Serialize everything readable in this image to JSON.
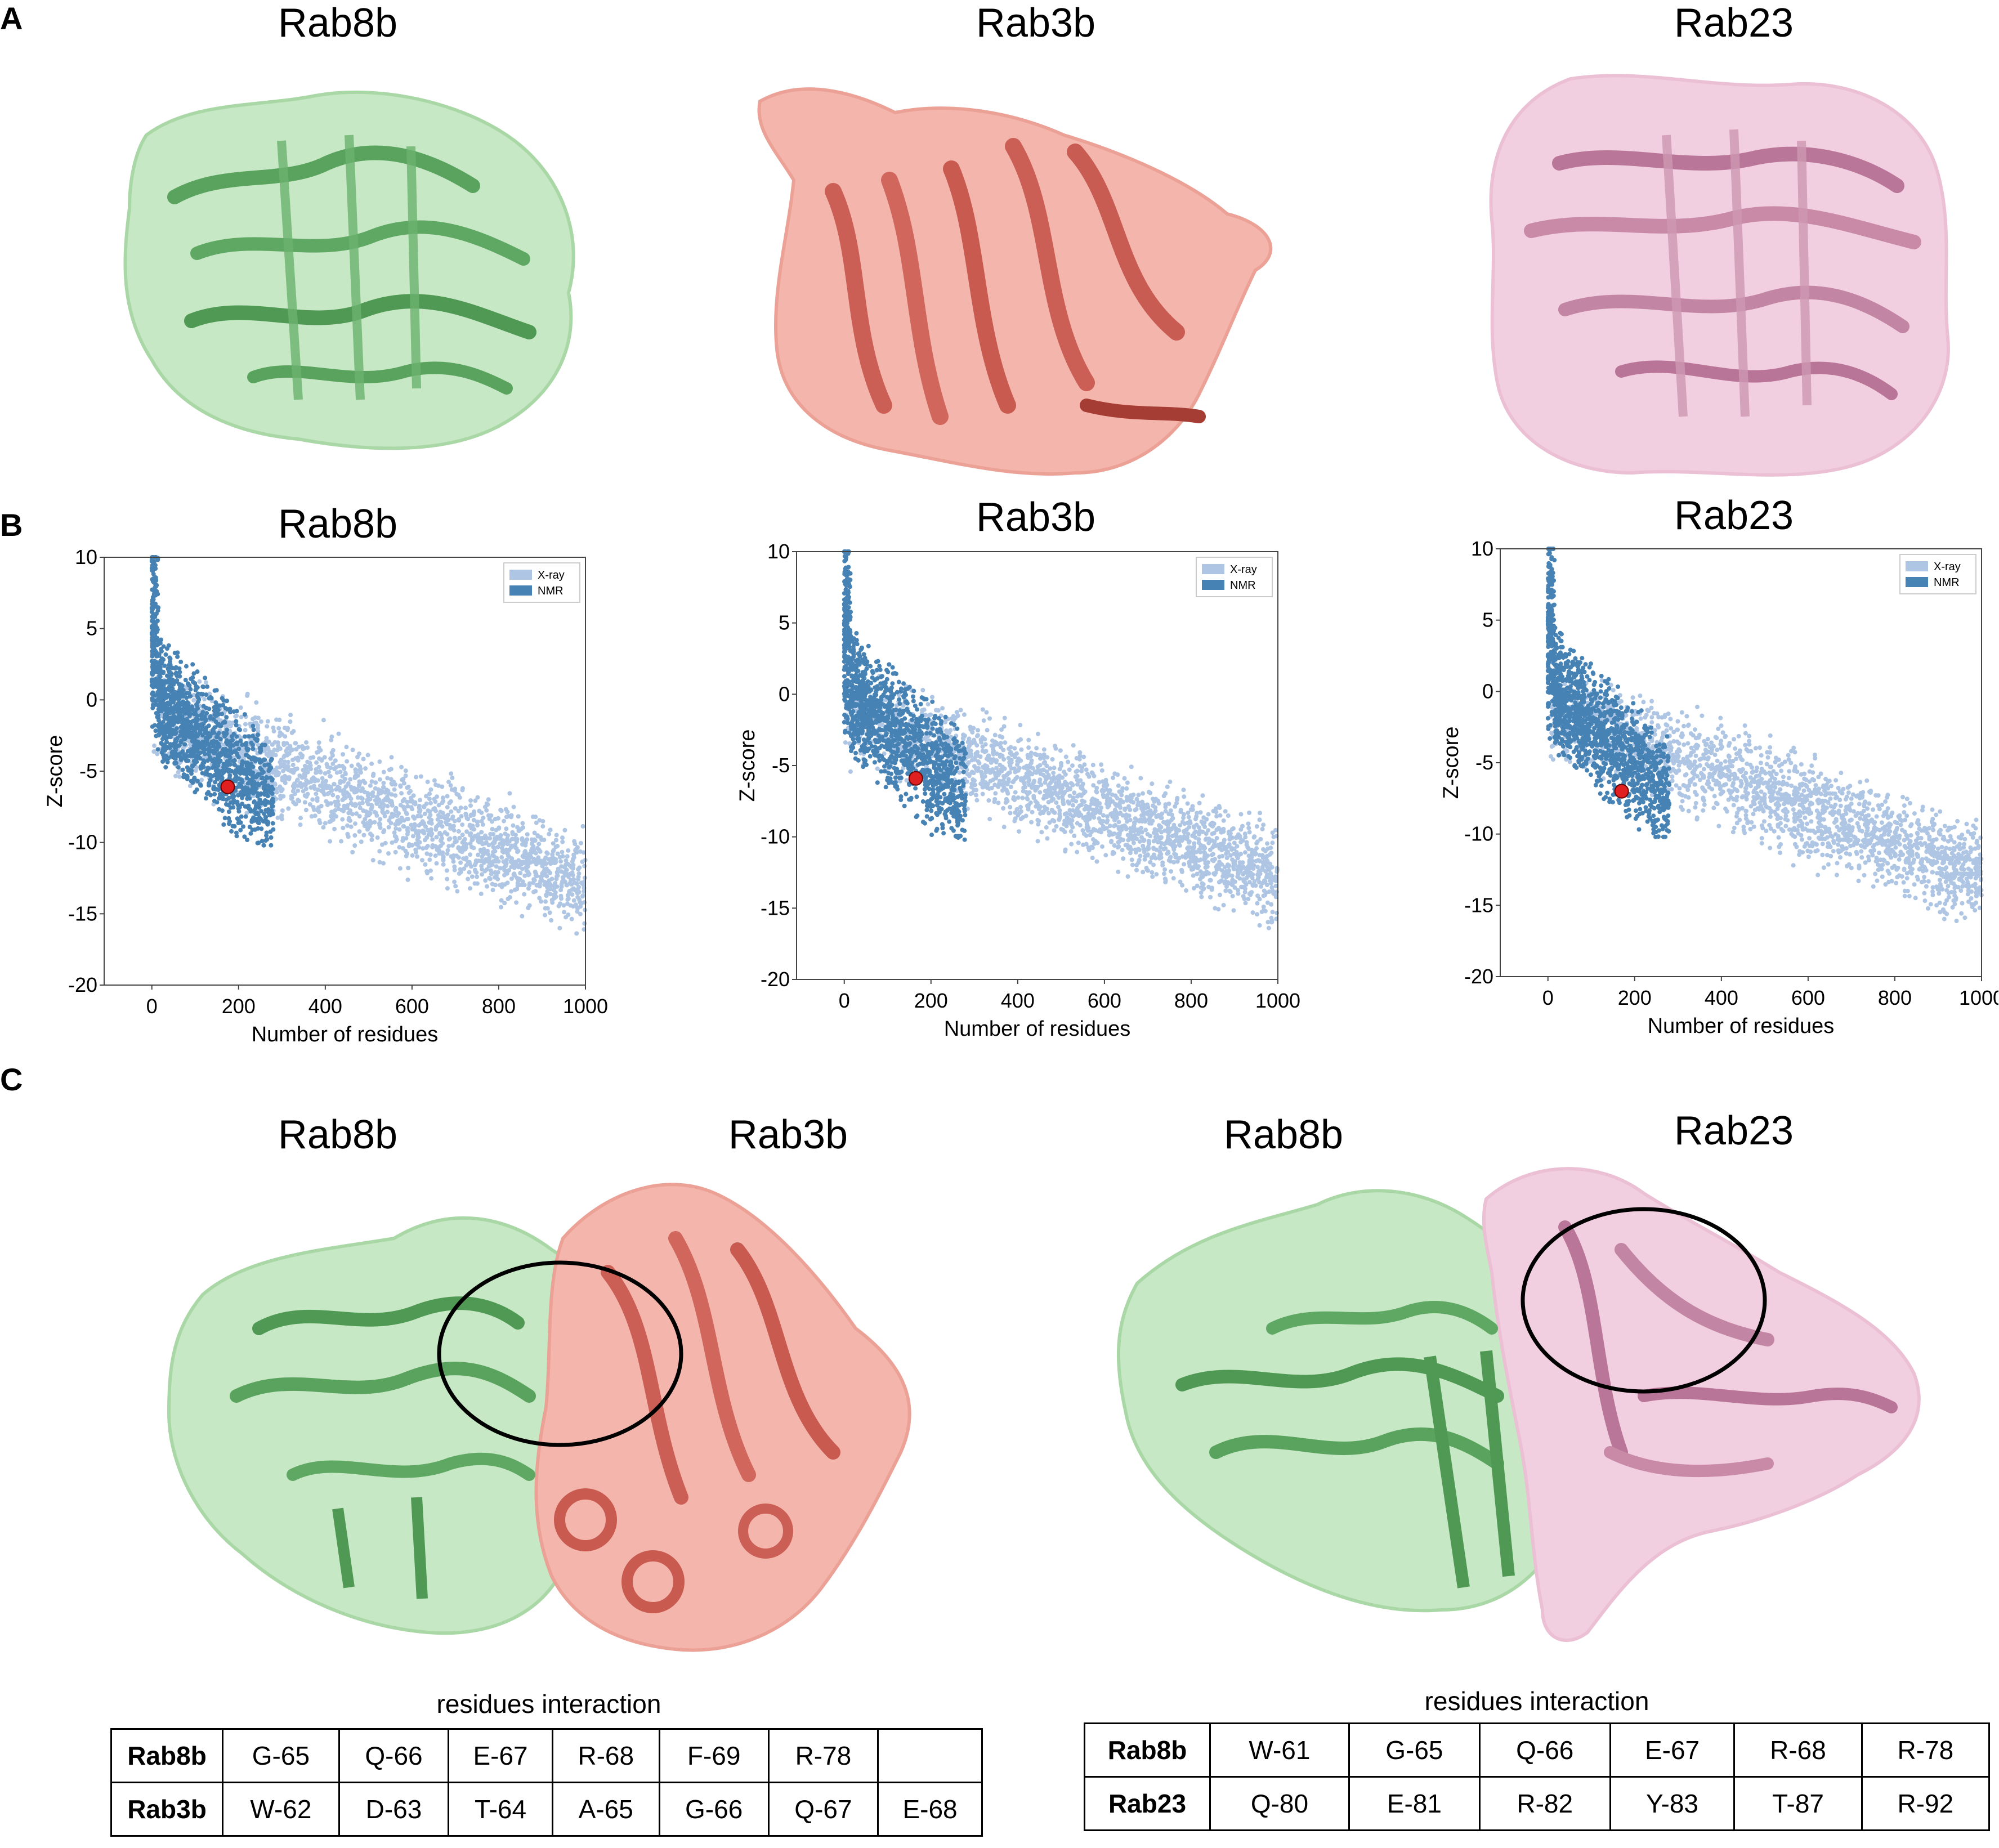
{
  "panels": {
    "a": "A",
    "b": "B",
    "c": "C"
  },
  "colors": {
    "rab8b": "#86c98a",
    "rab3b": "#e88a7f",
    "rab23": "#e6a9c6",
    "xray": "#aec6e4",
    "nmr": "#4682b4",
    "marker": "#e02020"
  },
  "structures": {
    "titles": [
      "Rab8b",
      "Rab3b",
      "Rab23"
    ]
  },
  "charts": {
    "titles": [
      "Rab8b",
      "Rab3b",
      "Rab23"
    ],
    "xlabel": "Number of residues",
    "ylabel": "Z-score",
    "xticks": [
      "0",
      "200",
      "400",
      "600",
      "800",
      "1000"
    ],
    "yticks": [
      "10",
      "5",
      "0",
      "-5",
      "-10",
      "-15",
      "-20"
    ],
    "legend": [
      "X-ray",
      "NMR"
    ]
  },
  "chart_data": [
    {
      "type": "scatter",
      "title": "Rab8b",
      "xlabel": "Number of residues",
      "ylabel": "Z-score",
      "xlim": [
        -110,
        1000
      ],
      "ylim": [
        -20,
        10
      ],
      "legend": [
        "X-ray",
        "NMR"
      ],
      "legend_position": "top-right",
      "highlight": {
        "x": 175,
        "y": -6.1
      }
    },
    {
      "type": "scatter",
      "title": "Rab3b",
      "xlabel": "Number of residues",
      "ylabel": "Z-score",
      "xlim": [
        -110,
        1000
      ],
      "ylim": [
        -20,
        10
      ],
      "legend": [
        "X-ray",
        "NMR"
      ],
      "legend_position": "top-right",
      "highlight": {
        "x": 165,
        "y": -5.9
      }
    },
    {
      "type": "scatter",
      "title": "Rab23",
      "xlabel": "Number of residues",
      "ylabel": "Z-score",
      "xlim": [
        -110,
        1000
      ],
      "ylim": [
        -20,
        10
      ],
      "legend": [
        "X-ray",
        "NMR"
      ],
      "legend_position": "top-right",
      "highlight": {
        "x": 170,
        "y": -7.0
      }
    }
  ],
  "complexes": {
    "left": {
      "title_a": "Rab8b",
      "title_b": "Rab3b"
    },
    "right": {
      "title_a": "Rab8b",
      "title_b": "Rab23"
    }
  },
  "tables": {
    "left": {
      "caption": "residues interaction",
      "rows": [
        {
          "head": "Rab8b",
          "cells": [
            "G-65",
            "Q-66",
            "E-67",
            "R-68",
            "F-69",
            "R-78",
            ""
          ]
        },
        {
          "head": "Rab3b",
          "cells": [
            "W-62",
            "D-63",
            "T-64",
            "A-65",
            "G-66",
            "Q-67",
            "E-68"
          ]
        }
      ]
    },
    "right": {
      "caption": "residues interaction",
      "rows": [
        {
          "head": "Rab8b",
          "cells": [
            "W-61",
            "G-65",
            "Q-66",
            "E-67",
            "R-68",
            "R-78"
          ]
        },
        {
          "head": "Rab23",
          "cells": [
            "Q-80",
            "E-81",
            "R-82",
            "Y-83",
            "T-87",
            "R-92"
          ]
        }
      ]
    }
  }
}
